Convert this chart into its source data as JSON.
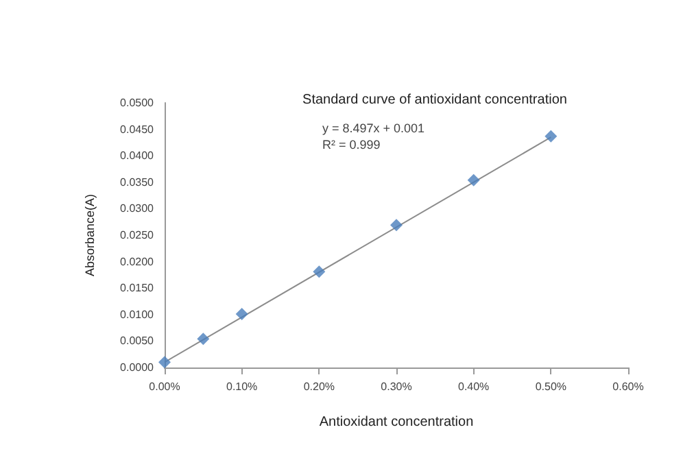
{
  "chart_data": {
    "type": "scatter",
    "title": "Standard curve of antioxidant concentration",
    "xlabel": "Antioxidant concentration",
    "ylabel": "Absorbance(A)",
    "annotations": [
      "y = 8.497x + 0.001",
      "R² = 0.999"
    ],
    "series": [
      {
        "color": "#4a7ebb",
        "marker": "diamond",
        "x": [
          0,
          0.05,
          0.1,
          0.2,
          0.3,
          0.4,
          0.5
        ],
        "values": [
          0.001,
          0.0054,
          0.0101,
          0.0181,
          0.0269,
          0.0354,
          0.0437
        ]
      },
      {
        "type": "line",
        "marker": "none",
        "color": "#8c8c8c",
        "x": [
          0,
          0.5
        ],
        "values": [
          0.001,
          0.0435
        ]
      }
    ],
    "xlim": [
      0,
      0.6
    ],
    "xticks": [
      {
        "value": 0,
        "label": "0.00%"
      },
      {
        "value": 0.1,
        "label": "0.10%"
      },
      {
        "value": 0.2,
        "label": "0.20%"
      },
      {
        "value": 0.3,
        "label": "0.30%"
      },
      {
        "value": 0.4,
        "label": "0.40%"
      },
      {
        "value": 0.5,
        "label": "0.50%"
      },
      {
        "value": 0.6,
        "label": "0.60%"
      }
    ],
    "ylim": [
      0,
      0.05
    ],
    "yticks": [
      {
        "value": 0,
        "label": "0.0000"
      },
      {
        "value": 0.005,
        "label": "0.0050"
      },
      {
        "value": 0.01,
        "label": "0.0100"
      },
      {
        "value": 0.015,
        "label": "0.0150"
      },
      {
        "value": 0.02,
        "label": "0.0200"
      },
      {
        "value": 0.025,
        "label": "0.0250"
      },
      {
        "value": 0.03,
        "label": "0.0300"
      },
      {
        "value": 0.035,
        "label": "0.0350"
      },
      {
        "value": 0.04,
        "label": "0.0400"
      },
      {
        "value": 0.045,
        "label": "0.0450"
      },
      {
        "value": 0.05,
        "label": "0.0500"
      }
    ],
    "grid": false,
    "line_style": "solid"
  }
}
